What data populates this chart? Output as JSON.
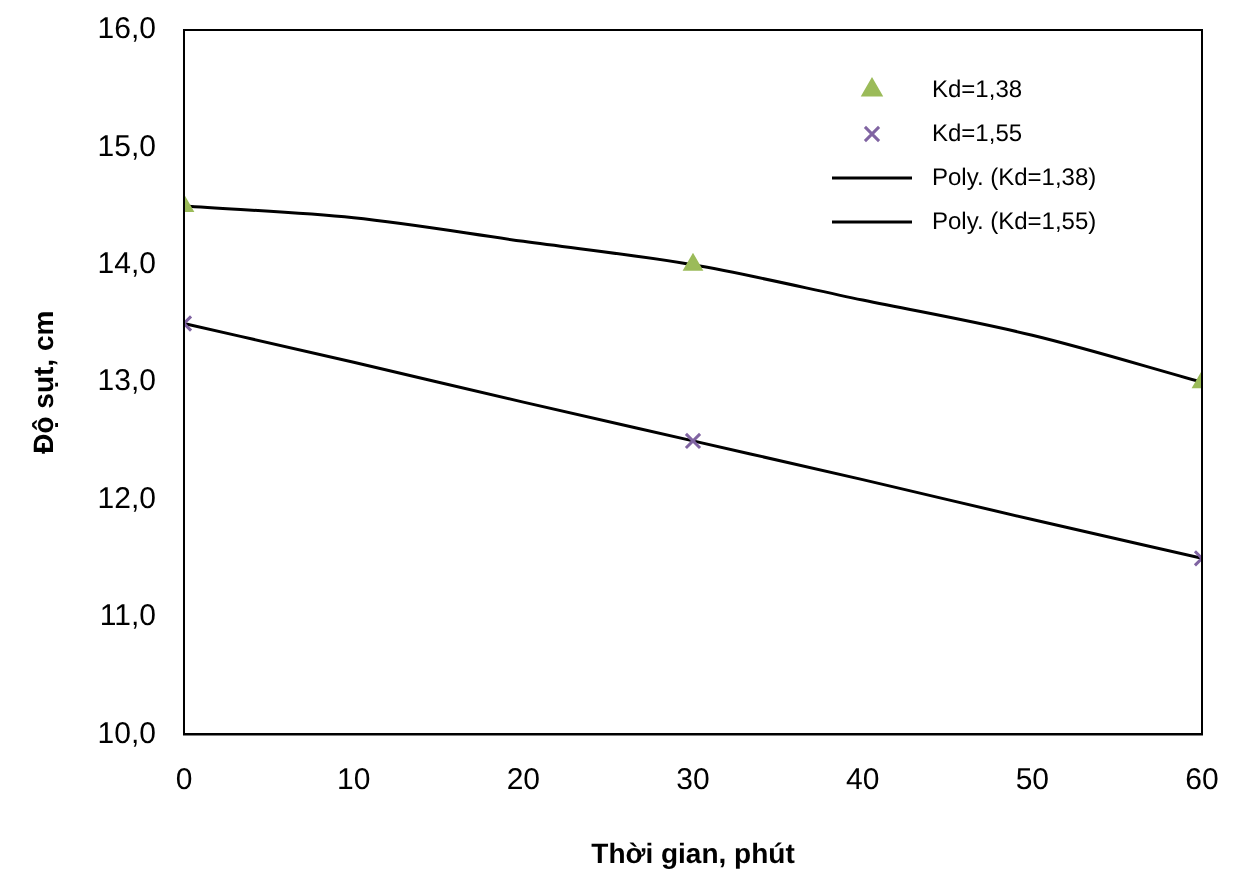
{
  "chart_data": {
    "type": "scatter",
    "xlabel": "Thời gian, phút",
    "ylabel": "Độ sụt, cm",
    "xlim": [
      0,
      60
    ],
    "xticks": [
      0,
      10,
      20,
      30,
      40,
      50,
      60
    ],
    "ylim": [
      10,
      16
    ],
    "yticks": [
      {
        "value": 10,
        "label": "10,0"
      },
      {
        "value": 11,
        "label": "11,0"
      },
      {
        "value": 12,
        "label": "12,0"
      },
      {
        "value": 13,
        "label": "13,0"
      },
      {
        "value": 14,
        "label": "14,0"
      },
      {
        "value": 15,
        "label": "15,0"
      },
      {
        "value": 16,
        "label": "16,0"
      }
    ],
    "grid": false,
    "legend": "top right",
    "series": [
      {
        "name": "Kd=1,38",
        "type": "scatter",
        "marker": "triangle",
        "color": "#9bbb59",
        "x": [
          0,
          30,
          60
        ],
        "values": [
          14.5,
          14.0,
          13.0
        ]
      },
      {
        "name": "Kd=1,55",
        "type": "scatter",
        "marker": "cross",
        "color": "#8064a2",
        "x": [
          0,
          30,
          60
        ],
        "values": [
          13.5,
          12.5,
          11.5
        ]
      },
      {
        "name": "Poly. (Kd=1,38)",
        "type": "line",
        "marker": "none",
        "color": "#000000",
        "x": [
          0,
          10,
          20,
          30,
          40,
          50,
          60
        ],
        "values": [
          14.5,
          14.4,
          14.2,
          14.0,
          13.7,
          13.4,
          13.0
        ]
      },
      {
        "name": "Poly. (Kd=1,55)",
        "type": "line",
        "marker": "none",
        "color": "#000000",
        "x": [
          0,
          10,
          20,
          30,
          40,
          50,
          60
        ],
        "values": [
          13.5,
          13.17,
          12.83,
          12.5,
          12.17,
          11.83,
          11.5
        ]
      }
    ]
  }
}
